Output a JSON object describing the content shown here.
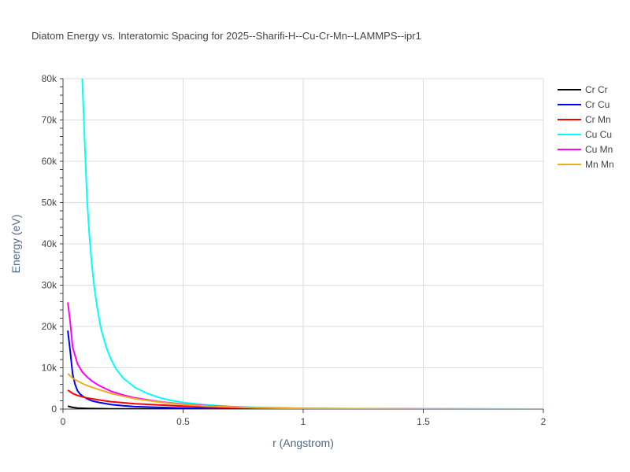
{
  "chart_data": {
    "type": "line",
    "title": "Diatom Energy vs. Interatomic Spacing for 2025--Sharifi-H--Cu-Cr-Mn--LAMMPS--ipr1",
    "xlabel": "r (Angstrom)",
    "ylabel": "Energy (eV)",
    "xlim": [
      0,
      2
    ],
    "ylim": [
      0,
      80000
    ],
    "x_ticks": [
      {
        "value": 0,
        "label": "0"
      },
      {
        "value": 0.5,
        "label": "0.5"
      },
      {
        "value": 1,
        "label": "1"
      },
      {
        "value": 1.5,
        "label": "1.5"
      },
      {
        "value": 2,
        "label": "2"
      }
    ],
    "y_ticks": [
      {
        "value": 0,
        "label": "0"
      },
      {
        "value": 10000,
        "label": "10k"
      },
      {
        "value": 20000,
        "label": "20k"
      },
      {
        "value": 30000,
        "label": "30k"
      },
      {
        "value": 40000,
        "label": "40k"
      },
      {
        "value": 50000,
        "label": "50k"
      },
      {
        "value": 60000,
        "label": "60k"
      },
      {
        "value": 70000,
        "label": "70k"
      },
      {
        "value": 80000,
        "label": "80k"
      }
    ],
    "grid": true,
    "legend_position": "top-right",
    "series": [
      {
        "name": "Cr Cr",
        "color": "#000000",
        "x": [
          0.02,
          0.04,
          0.06,
          0.1,
          0.15,
          0.2,
          0.3,
          0.5,
          1.0,
          2.0
        ],
        "y": [
          700,
          400,
          250,
          150,
          90,
          60,
          30,
          10,
          0,
          0
        ]
      },
      {
        "name": "Cr Cu",
        "color": "#0000ff",
        "x": [
          0.02,
          0.03,
          0.04,
          0.05,
          0.06,
          0.07,
          0.08,
          0.1,
          0.12,
          0.15,
          0.2,
          0.25,
          0.3,
          0.4,
          0.5,
          0.6,
          0.8,
          1.0,
          1.5,
          2.0
        ],
        "y": [
          19000,
          14000,
          8500,
          6000,
          4500,
          3700,
          3200,
          2500,
          2000,
          1600,
          1100,
          800,
          600,
          400,
          250,
          150,
          50,
          10,
          0,
          0
        ]
      },
      {
        "name": "Cr Mn",
        "color": "#ff0000",
        "x": [
          0.02,
          0.04,
          0.06,
          0.08,
          0.1,
          0.15,
          0.2,
          0.3,
          0.4,
          0.5,
          0.6,
          0.8,
          1.0,
          1.5,
          2.0
        ],
        "y": [
          4600,
          3800,
          3300,
          3000,
          2700,
          2200,
          1800,
          1300,
          1000,
          700,
          500,
          250,
          100,
          10,
          0
        ]
      },
      {
        "name": "Cu Cu",
        "color": "#00ffff",
        "x": [
          0.08,
          0.09,
          0.1,
          0.11,
          0.12,
          0.13,
          0.14,
          0.15,
          0.16,
          0.18,
          0.2,
          0.22,
          0.25,
          0.3,
          0.35,
          0.4,
          0.45,
          0.5,
          0.6,
          0.7,
          0.8,
          1.0,
          1.2,
          1.5,
          2.0
        ],
        "y": [
          80000,
          65000,
          51000,
          42000,
          35000,
          29500,
          25500,
          22000,
          19000,
          15000,
          12000,
          9800,
          7500,
          5200,
          3800,
          2800,
          2100,
          1600,
          1000,
          600,
          400,
          200,
          100,
          50,
          0
        ]
      },
      {
        "name": "Cu Mn",
        "color": "#ff00ff",
        "x": [
          0.02,
          0.03,
          0.04,
          0.05,
          0.06,
          0.08,
          0.1,
          0.12,
          0.15,
          0.2,
          0.25,
          0.3,
          0.4,
          0.5,
          0.6,
          0.8,
          1.0,
          1.5,
          2.0
        ],
        "y": [
          25800,
          21000,
          15000,
          13000,
          11000,
          9000,
          7800,
          6800,
          5700,
          4300,
          3400,
          2700,
          1800,
          1200,
          800,
          350,
          150,
          20,
          0
        ]
      },
      {
        "name": "Mn Mn",
        "color": "#e6b020",
        "x": [
          0.02,
          0.04,
          0.06,
          0.08,
          0.1,
          0.15,
          0.2,
          0.25,
          0.3,
          0.4,
          0.5,
          0.6,
          0.8,
          1.0,
          1.5,
          2.0
        ],
        "y": [
          8600,
          7500,
          6800,
          6200,
          5700,
          4700,
          3800,
          3100,
          2500,
          1700,
          1100,
          700,
          300,
          150,
          20,
          0
        ]
      }
    ]
  }
}
